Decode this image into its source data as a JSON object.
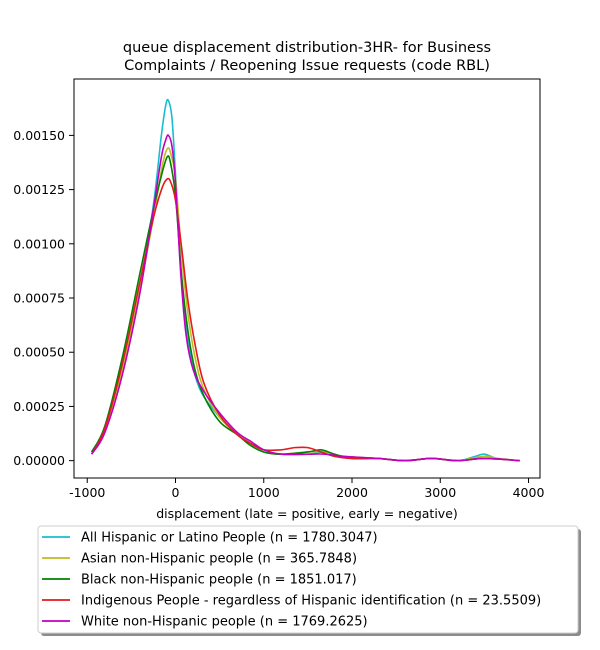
{
  "chart_data": {
    "type": "line",
    "title_line1": "queue displacement distribution-3HR-  for Business",
    "title_line2": "Complaints / Reopening Issue  requests (code RBL)",
    "xlabel": "displacement (late = positive, early = negative)",
    "ylabel": "",
    "xlim": [
      -1150,
      4130
    ],
    "ylim": [
      -8e-05,
      0.00176
    ],
    "x_ticks": [
      -1000,
      0,
      1000,
      2000,
      3000,
      4000
    ],
    "y_ticks": [
      0.0,
      0.00025,
      0.0005,
      0.00075,
      0.001,
      0.00125,
      0.0015
    ],
    "y_tick_labels": [
      "0.00000",
      "0.00025",
      "0.00050",
      "0.00075",
      "0.00100",
      "0.00125",
      "0.00150"
    ],
    "legend_position": "below",
    "series": [
      {
        "name": "All Hispanic or Latino People (n = 1780.3047)",
        "color": "#17becf",
        "points": [
          [
            -950,
            3e-05
          ],
          [
            -800,
            0.00014
          ],
          [
            -600,
            0.00042
          ],
          [
            -400,
            0.0008
          ],
          [
            -250,
            0.00118
          ],
          [
            -160,
            0.0015
          ],
          [
            -110,
            0.00164
          ],
          [
            -80,
            0.00166
          ],
          [
            -40,
            0.00158
          ],
          [
            0,
            0.00132
          ],
          [
            60,
            0.00088
          ],
          [
            120,
            0.00062
          ],
          [
            200,
            0.00043
          ],
          [
            300,
            0.00031
          ],
          [
            500,
            0.0002
          ],
          [
            700,
            0.00012
          ],
          [
            850,
            8e-05
          ],
          [
            1000,
            4e-05
          ],
          [
            1200,
            3e-05
          ],
          [
            1500,
            3e-05
          ],
          [
            1700,
            4e-05
          ],
          [
            1900,
            2e-05
          ],
          [
            2300,
            1e-05
          ],
          [
            2600,
            0.0
          ],
          [
            2900,
            1e-05
          ],
          [
            3200,
            0.0
          ],
          [
            3400,
            2e-05
          ],
          [
            3500,
            3e-05
          ],
          [
            3650,
            1e-05
          ],
          [
            3900,
            0.0
          ]
        ]
      },
      {
        "name": "Asian non-Hispanic people (n = 365.7848)",
        "color": "#bcbd22",
        "points": [
          [
            -950,
            3e-05
          ],
          [
            -800,
            0.00014
          ],
          [
            -600,
            0.00042
          ],
          [
            -400,
            0.0008
          ],
          [
            -250,
            0.00112
          ],
          [
            -150,
            0.00136
          ],
          [
            -90,
            0.00144
          ],
          [
            -50,
            0.00141
          ],
          [
            0,
            0.0013
          ],
          [
            70,
            0.00095
          ],
          [
            140,
            0.00068
          ],
          [
            220,
            0.00048
          ],
          [
            320,
            0.00033
          ],
          [
            500,
            0.0002
          ],
          [
            700,
            0.00012
          ],
          [
            850,
            8e-05
          ],
          [
            1000,
            4e-05
          ],
          [
            1200,
            3e-05
          ],
          [
            1500,
            4e-05
          ],
          [
            1700,
            4e-05
          ],
          [
            1900,
            2e-05
          ],
          [
            2300,
            1e-05
          ],
          [
            2600,
            0.0
          ],
          [
            2900,
            1e-05
          ],
          [
            3200,
            0.0
          ],
          [
            3500,
            2e-05
          ],
          [
            3650,
            1e-05
          ],
          [
            3900,
            0.0
          ]
        ]
      },
      {
        "name": "Black non-Hispanic people (n = 1851.017)",
        "color": "#008000",
        "points": [
          [
            -950,
            4e-05
          ],
          [
            -800,
            0.00016
          ],
          [
            -600,
            0.00048
          ],
          [
            -400,
            0.00087
          ],
          [
            -250,
            0.00116
          ],
          [
            -150,
            0.00133
          ],
          [
            -95,
            0.0014
          ],
          [
            -60,
            0.00138
          ],
          [
            0,
            0.00122
          ],
          [
            70,
            0.00085
          ],
          [
            140,
            0.0006
          ],
          [
            220,
            0.00042
          ],
          [
            320,
            0.0003
          ],
          [
            500,
            0.00018
          ],
          [
            700,
            0.00012
          ],
          [
            850,
            7e-05
          ],
          [
            1000,
            4e-05
          ],
          [
            1200,
            3e-05
          ],
          [
            1500,
            4e-05
          ],
          [
            1650,
            5e-05
          ],
          [
            1800,
            3e-05
          ],
          [
            2000,
            1e-05
          ],
          [
            2300,
            1e-05
          ],
          [
            2600,
            0.0
          ],
          [
            2900,
            1e-05
          ],
          [
            3200,
            0.0
          ],
          [
            3500,
            1e-05
          ],
          [
            3900,
            0.0
          ]
        ]
      },
      {
        "name": "Indigenous People - regardless of Hispanic identification (n = 23.5509)",
        "color": "#e41a1c",
        "points": [
          [
            -950,
            3e-05
          ],
          [
            -800,
            0.00015
          ],
          [
            -600,
            0.00045
          ],
          [
            -400,
            0.00083
          ],
          [
            -250,
            0.00112
          ],
          [
            -150,
            0.00126
          ],
          [
            -90,
            0.0013
          ],
          [
            -50,
            0.00128
          ],
          [
            0,
            0.0012
          ],
          [
            70,
            0.00098
          ],
          [
            140,
            0.00074
          ],
          [
            220,
            0.00054
          ],
          [
            320,
            0.00036
          ],
          [
            500,
            0.00021
          ],
          [
            700,
            0.00012
          ],
          [
            850,
            8e-05
          ],
          [
            1000,
            5e-05
          ],
          [
            1200,
            5e-05
          ],
          [
            1350,
            6e-05
          ],
          [
            1500,
            6e-05
          ],
          [
            1650,
            4e-05
          ],
          [
            1800,
            2e-05
          ],
          [
            2000,
            1e-05
          ],
          [
            2300,
            1e-05
          ],
          [
            2600,
            0.0
          ],
          [
            2900,
            1e-05
          ],
          [
            3200,
            0.0
          ],
          [
            3500,
            1e-05
          ],
          [
            3900,
            0.0
          ]
        ]
      },
      {
        "name": "White non-Hispanic people (n = 1769.2625)",
        "color": "#c000c0",
        "points": [
          [
            -950,
            3e-05
          ],
          [
            -800,
            0.00013
          ],
          [
            -600,
            0.0004
          ],
          [
            -400,
            0.00078
          ],
          [
            -250,
            0.00116
          ],
          [
            -160,
            0.0014
          ],
          [
            -110,
            0.00148
          ],
          [
            -80,
            0.0015
          ],
          [
            -40,
            0.00145
          ],
          [
            0,
            0.00128
          ],
          [
            60,
            0.00086
          ],
          [
            120,
            0.00058
          ],
          [
            200,
            0.00042
          ],
          [
            320,
            0.00032
          ],
          [
            500,
            0.00022
          ],
          [
            700,
            0.00013
          ],
          [
            850,
            9e-05
          ],
          [
            1000,
            5e-05
          ],
          [
            1200,
            3e-05
          ],
          [
            1500,
            3e-05
          ],
          [
            1700,
            3e-05
          ],
          [
            1900,
            2e-05
          ],
          [
            2300,
            1e-05
          ],
          [
            2600,
            0.0
          ],
          [
            2900,
            1e-05
          ],
          [
            3200,
            0.0
          ],
          [
            3500,
            1e-05
          ],
          [
            3900,
            0.0
          ]
        ]
      }
    ]
  }
}
